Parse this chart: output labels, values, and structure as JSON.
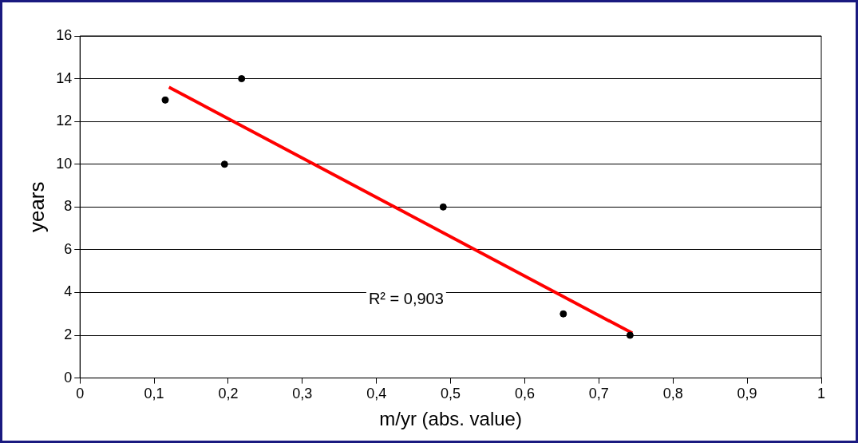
{
  "chart_data": {
    "type": "scatter",
    "xlabel": "m/yr (abs. value)",
    "ylabel": "years",
    "xlim": [
      0,
      1
    ],
    "xticks": [
      0,
      {
        "value": 0.1,
        "label": "0,1"
      },
      {
        "value": 0.2,
        "label": "0,2"
      },
      {
        "value": 0.3,
        "label": "0,3"
      },
      {
        "value": 0.4,
        "label": "0,4"
      },
      {
        "value": 0.5,
        "label": "0,5"
      },
      {
        "value": 0.6,
        "label": "0,6"
      },
      {
        "value": 0.7,
        "label": "0,7"
      },
      {
        "value": 0.8,
        "label": "0,8"
      },
      {
        "value": 0.9,
        "label": "0,9"
      },
      1
    ],
    "ylim": [
      0,
      16
    ],
    "yticks": [
      0,
      2,
      4,
      6,
      8,
      10,
      12,
      14,
      16
    ],
    "grid": "y",
    "legend": false,
    "series": [
      {
        "color": "#000000",
        "marker": "circle",
        "x": [
          0.115,
          0.195,
          0.218,
          0.49,
          0.652,
          0.742
        ],
        "values": [
          13,
          10,
          14,
          8,
          3,
          2
        ]
      },
      {
        "type": "line",
        "color": "#ff0000",
        "line_style": "solid",
        "marker": "none",
        "x": [
          0.12,
          0.745
        ],
        "values": [
          13.6,
          2.1
        ]
      }
    ],
    "annotations": [
      "R² = 0,903"
    ]
  }
}
